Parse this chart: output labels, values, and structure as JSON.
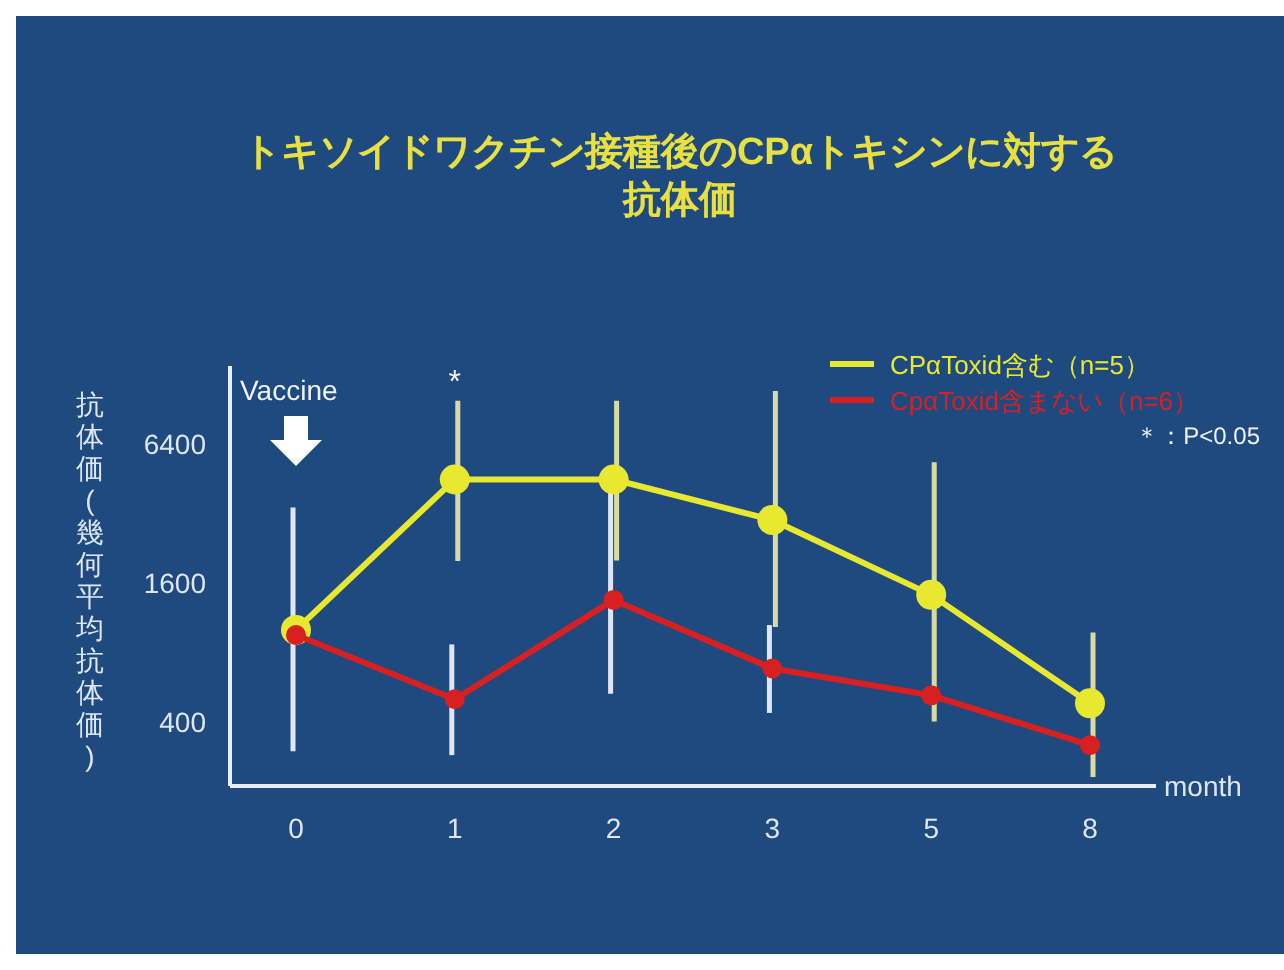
{
  "chart_data": {
    "type": "line",
    "title": "トキソイドワクチン接種後のCPαトキシンに対する抗体価",
    "ylabel": "抗体価(幾何平均抗体価)",
    "xlabel": "month",
    "categories": [
      "0",
      "1",
      "2",
      "3",
      "5",
      "8"
    ],
    "series": [
      {
        "name": "CPαToxid含む（n=5）",
        "color": "#e8e830",
        "values": [
          1000,
          4500,
          4500,
          3000,
          1420,
          480
        ],
        "errors": [
          null,
          [
            1990,
            9900
          ],
          [
            2000,
            9900
          ],
          [
            1030,
            10900
          ],
          [
            400,
            5350
          ],
          [
            230,
            975
          ]
        ]
      },
      {
        "name": "CpαToxid含まない（n=6）",
        "color": "#d82020",
        "values": [
          950,
          500,
          1350,
          680,
          520,
          316
        ],
        "errors": [
          [
            297,
            3400
          ],
          [
            286,
            865
          ],
          [
            528,
            4000
          ],
          [
            436,
            1050
          ],
          null,
          null
        ]
      }
    ],
    "ylim": [
      210,
      14000
    ],
    "yticks": [
      400,
      1600,
      6400
    ],
    "log": true,
    "grid": false,
    "legend": "top right",
    "marker": "circle",
    "line_style": "solid",
    "annotations": [
      "Vaccine",
      "*",
      "＊：P<0.05"
    ]
  }
}
